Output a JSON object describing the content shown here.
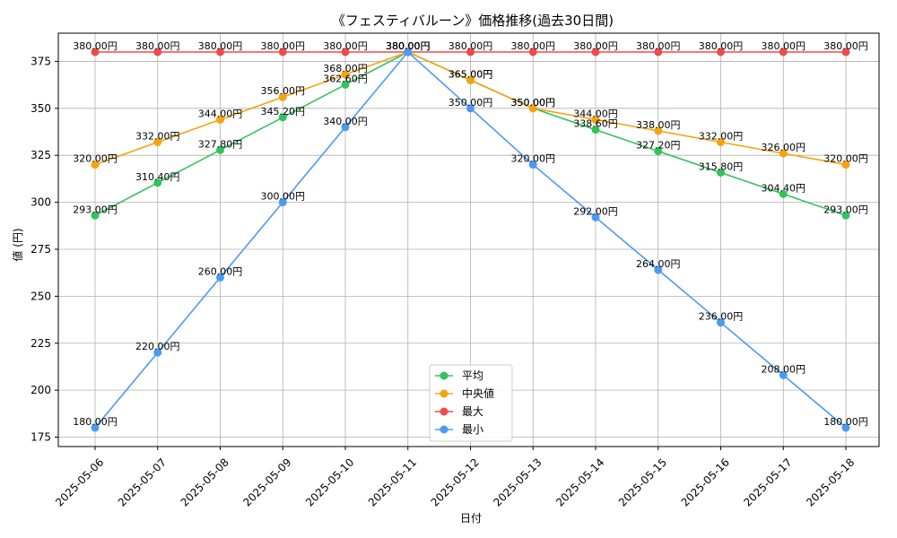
{
  "chart_data": {
    "type": "line",
    "title": "《フェスティバルーン》価格推移(過去30日間)",
    "xlabel": "日付",
    "ylabel": "値 (円)",
    "ylim": [
      170,
      390
    ],
    "yticks": [
      175,
      200,
      225,
      250,
      275,
      300,
      325,
      350,
      375
    ],
    "grid": true,
    "legend_position": "lower-center",
    "label_suffix": "円",
    "categories": [
      "2025-05-06",
      "2025-05-07",
      "2025-05-08",
      "2025-05-09",
      "2025-05-10",
      "2025-05-11",
      "2025-05-12",
      "2025-05-13",
      "2025-05-14",
      "2025-05-15",
      "2025-05-16",
      "2025-05-17",
      "2025-05-18"
    ],
    "series": [
      {
        "name": "平均",
        "color": "#33c35d",
        "values": [
          293.0,
          310.4,
          327.8,
          345.2,
          362.6,
          380.0,
          365.0,
          350.0,
          338.6,
          327.2,
          315.8,
          304.4,
          293.0
        ]
      },
      {
        "name": "中央値",
        "color": "#f5a30f",
        "values": [
          320.0,
          332.0,
          344.0,
          356.0,
          368.0,
          380.0,
          365.0,
          350.0,
          344.0,
          338.0,
          332.0,
          326.0,
          320.0
        ]
      },
      {
        "name": "最大",
        "color": "#f04a4a",
        "values": [
          380.0,
          380.0,
          380.0,
          380.0,
          380.0,
          380.0,
          380.0,
          380.0,
          380.0,
          380.0,
          380.0,
          380.0,
          380.0
        ]
      },
      {
        "name": "最小",
        "color": "#4a9af5",
        "values": [
          180.0,
          220.0,
          260.0,
          300.0,
          340.0,
          380.0,
          350.0,
          320.0,
          292.0,
          264.0,
          236.0,
          208.0,
          180.0
        ]
      }
    ]
  }
}
